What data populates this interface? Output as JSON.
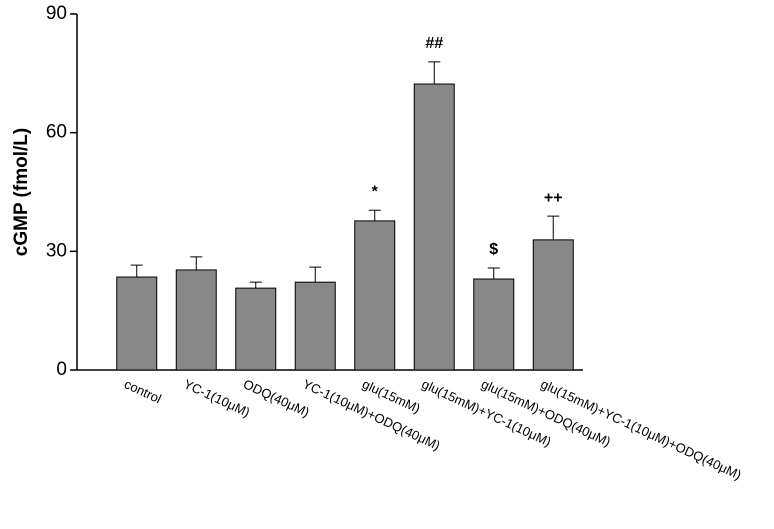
{
  "chart_data": {
    "type": "bar",
    "y_label": "cGMP (fmol/L)",
    "categories": [
      "control",
      "YC-1(10μM)",
      "ODQ(40μM)",
      "YC-1(10μM)+ODQ(40μM)",
      "glu(15mM)",
      "glu(15mM)+YC-1(10μM)",
      "glu(15mM)+ODQ(40μM)",
      "glu(15mM)+YC-1(10μM)+ODQ(40μM)"
    ],
    "values": [
      23.5,
      25.3,
      20.7,
      22.2,
      37.7,
      72.3,
      23,
      32.9
    ],
    "errors": [
      3,
      3.3,
      1.5,
      3.8,
      2.7,
      5.6,
      2.8,
      6
    ],
    "annotations": [
      null,
      null,
      null,
      null,
      "*",
      "##",
      "$",
      "++"
    ],
    "color": "#888888",
    "ylim": [
      0,
      90
    ],
    "yticks": [
      0,
      30,
      60,
      90
    ]
  }
}
